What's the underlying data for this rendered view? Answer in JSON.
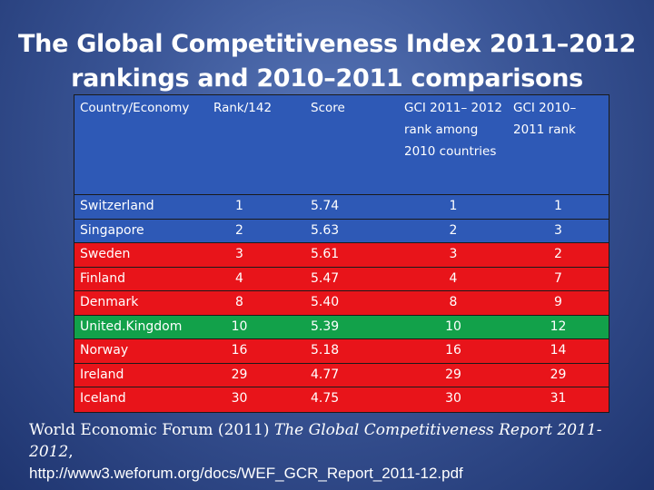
{
  "title": "The Global Competitiveness Index 2011–2012 rankings and 2010–2011 comparisons",
  "table": {
    "headers": [
      "Country/Economy",
      "Rank/142",
      "Score",
      "GCI 2011– 2012 rank among 2010 countries",
      "GCI 2010– 2011 rank"
    ],
    "rows": [
      {
        "country": "Switzerland",
        "rank": "1",
        "score": "5.74",
        "rank_2010_countries": "1",
        "rank_2010": "1",
        "color": "#2e59b6"
      },
      {
        "country": "Singapore",
        "rank": "2",
        "score": "5.63",
        "rank_2010_countries": "2",
        "rank_2010": "3",
        "color": "#2e59b6"
      },
      {
        "country": "Sweden",
        "rank": "3",
        "score": "5.61",
        "rank_2010_countries": "3",
        "rank_2010": "2",
        "color": "#e8141a"
      },
      {
        "country": "Finland",
        "rank": "4",
        "score": "5.47",
        "rank_2010_countries": "4",
        "rank_2010": "7",
        "color": "#e8141a"
      },
      {
        "country": "Denmark",
        "rank": "8",
        "score": "5.40",
        "rank_2010_countries": "8",
        "rank_2010": "9",
        "color": "#e8141a"
      },
      {
        "country": "United.Kingdom",
        "rank": "10",
        "score": "5.39",
        "rank_2010_countries": "10",
        "rank_2010": "12",
        "color": "#12a14a"
      },
      {
        "country": "Norway",
        "rank": "16",
        "score": "5.18",
        "rank_2010_countries": "16",
        "rank_2010": "14",
        "color": "#e8141a"
      },
      {
        "country": "Ireland",
        "rank": "29",
        "score": "4.77",
        "rank_2010_countries": "29",
        "rank_2010": "29",
        "color": "#e8141a"
      },
      {
        "country": "Iceland",
        "rank": "30",
        "score": "4.75",
        "rank_2010_countries": "30",
        "rank_2010": "31",
        "color": "#e8141a"
      }
    ]
  },
  "footer": {
    "source": "World Economic Forum (2011) ",
    "report": "The Global Competitiveness Report 2011-2012",
    "comma": ",",
    "url": "http://www3.weforum.org/docs/WEF_GCR_Report_2011-12.pdf"
  }
}
